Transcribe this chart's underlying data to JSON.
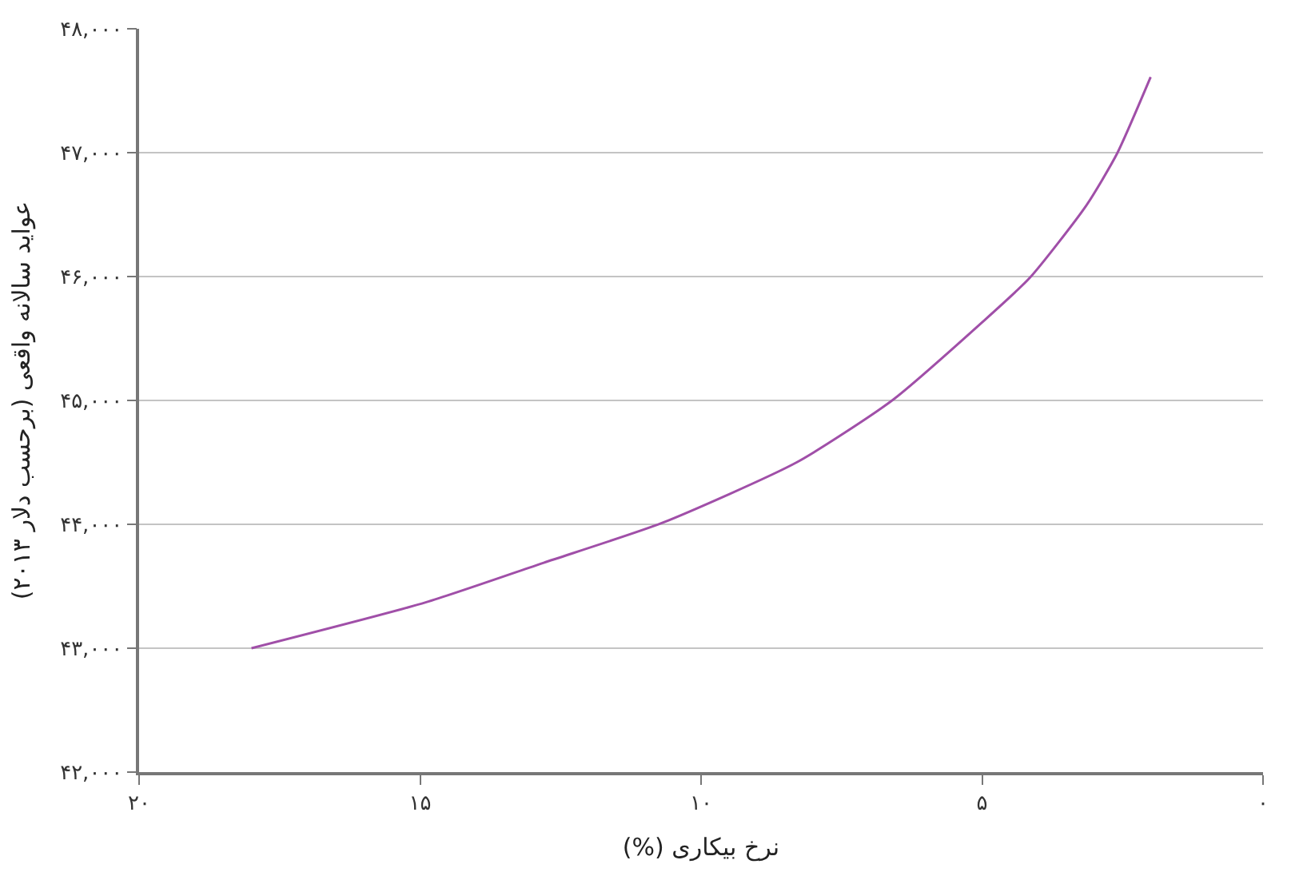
{
  "chart_data": {
    "type": "line",
    "xlabel": "نرخ بیکاری (%)",
    "ylabel": "عواید سالانه واقعی (برحسب دلار ۲۰۱۳)",
    "x": [
      18.0,
      14.9,
      12.8,
      10.7,
      8.3,
      6.6,
      5.0,
      4.15,
      3.15,
      2.6,
      2.0
    ],
    "series": [
      {
        "color": "#a04fa8",
        "values": [
          43000,
          43370,
          43690,
          44010,
          44500,
          45000,
          45630,
          45990,
          46570,
          46990,
          47610
        ]
      }
    ],
    "xlim": [
      20,
      0
    ],
    "xticks": [
      {
        "value": 20,
        "label": "۲۰"
      },
      {
        "value": 15,
        "label": "۱۵"
      },
      {
        "value": 10,
        "label": "۱۰"
      },
      {
        "value": 5,
        "label": "۵"
      },
      {
        "value": 0,
        "label": "۰"
      }
    ],
    "ylim": [
      42000,
      48000
    ],
    "yticks": [
      {
        "value": 42000,
        "label": "۴۲,۰۰۰"
      },
      {
        "value": 43000,
        "label": "۴۳,۰۰۰"
      },
      {
        "value": 44000,
        "label": "۴۴,۰۰۰"
      },
      {
        "value": 45000,
        "label": "۴۵,۰۰۰"
      },
      {
        "value": 46000,
        "label": "۴۶,۰۰۰"
      },
      {
        "value": 47000,
        "label": "۴۷,۰۰۰"
      },
      {
        "value": 48000,
        "label": "۴۸,۰۰۰"
      }
    ],
    "grid": "y",
    "marker": "none",
    "line_style": "solid"
  }
}
